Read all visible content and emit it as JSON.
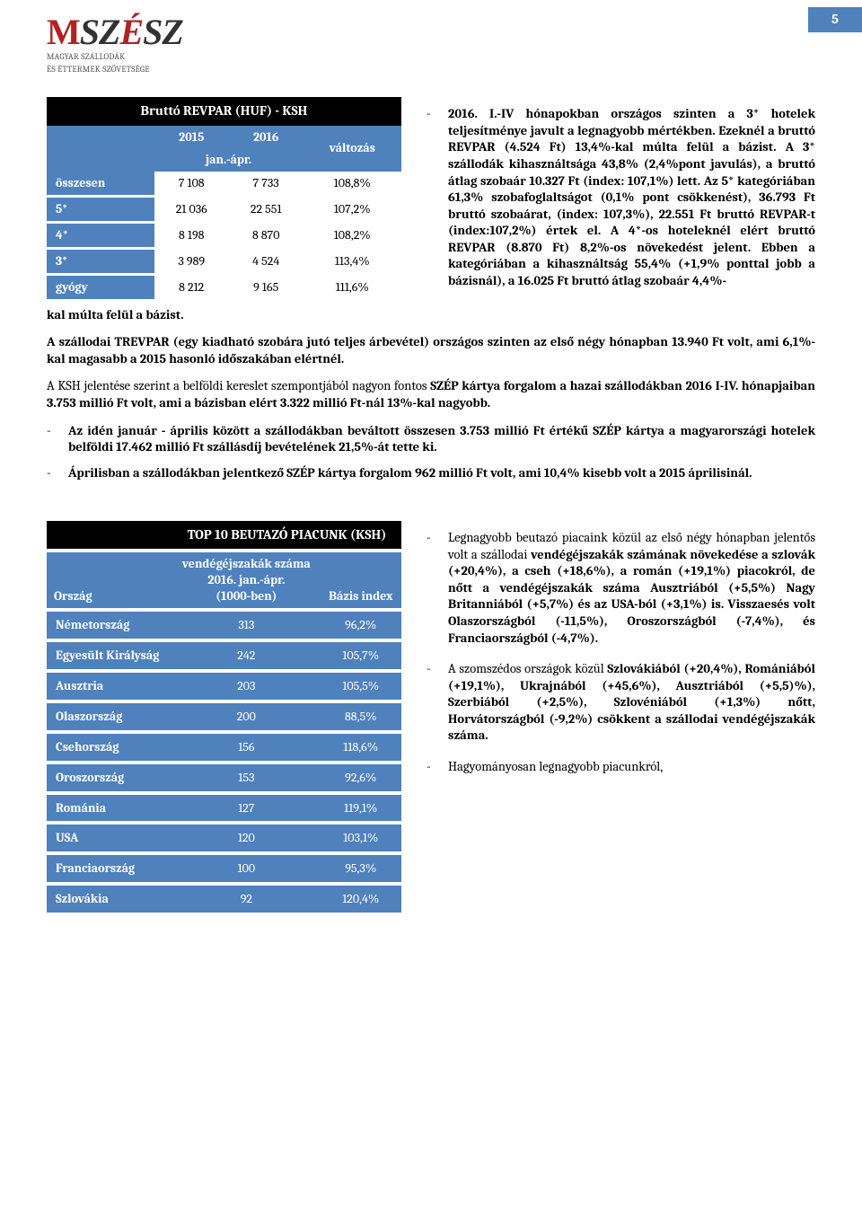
{
  "page_number": "5",
  "logo": {
    "m": "M",
    "rest": "SZÉSZ",
    "sub1": "MAGYAR SZÁLLODÁK",
    "sub2": "ÉS ÉTTERMEK SZÖVETSÉGE"
  },
  "revpar_table": {
    "title": "Bruttó REVPAR (HUF) - KSH",
    "col_2015": "2015",
    "col_2016": "2016",
    "col_period": "jan.-ápr.",
    "col_change": "változás",
    "rows": [
      {
        "label": "összesen",
        "v2015": "7 108",
        "v2016": "7 733",
        "chg": "108,8%"
      },
      {
        "label": "5*",
        "v2015": "21 036",
        "v2016": "22 551",
        "chg": "107,2%"
      },
      {
        "label": "4*",
        "v2015": "8 198",
        "v2016": "8 870",
        "chg": "108,2%"
      },
      {
        "label": "3*",
        "v2015": "3 989",
        "v2016": "4 524",
        "chg": "113,4%"
      },
      {
        "label": "gyógy",
        "v2015": "8 212",
        "v2016": "9 165",
        "chg": "111,6%"
      }
    ],
    "caption": "kal múlta felül a bázist."
  },
  "right_text": "2016. I.-IV hónapokban országos szinten a 3* hotelek teljesítménye javult a legnagyobb mértékben. Ezeknél a bruttó REVPAR (4.524 Ft) 13,4%-kal múlta felül a bázist. A 3* szállodák kihasználtsága 43,8% (2,4%pont javulás), a bruttó átlag szobaár 10.327 Ft (index: 107,1%) lett. Az 5* kategóriában 61,3% szobafoglaltságot (0,1% pont csökkenést), 36.793 Ft bruttó szobaárat, (index: 107,3%), 22.551 Ft bruttó REVPAR-t (index:107,2%) értek el. A 4*-os hoteleknél elért bruttó REVPAR (8.870 Ft) 8,2%-os növekedést jelent. Ebben a kategóriában a kihasználtság 55,4% (+1,9% ponttal jobb a bázisnál), a 16.025 Ft bruttó átlag szobaár 4,4%-",
  "mid_para_1_a": "A szállodai TREVPAR (egy kiadható szobára jutó teljes árbevétel) országos szinten az első négy hónapban 13.940 Ft volt, ami 6,1%-kal magasabb a 2015 hasonló időszakában elértnél.",
  "mid_para_2_a": "A KSH jelentése szerint a belföldi kereslet szempontjából nagyon fontos ",
  "mid_para_2_b": "SZÉP kártya forgalom a hazai szállodákban 2016 I-IV. hónapjaiban 3.753 millió Ft volt, ami a bázisban elért 3.322 millió Ft-nál 13%-kal nagyobb.",
  "bullet_1": "Az idén január - április között a szállodákban beváltott összesen 3.753 millió Ft értékű SZÉP kártya a magyarországi hotelek belföldi 17.462 millió Ft szállásdíj bevételének 21,5%-át tette ki.",
  "bullet_2": "Áprilisban a szállodákban jelentkező SZÉP kártya forgalom 962 millió Ft volt, ami 10,4% kisebb volt a 2015 áprilisinál.",
  "top10_table": {
    "title": "TOP 10 BEUTAZÓ PIACUNK (KSH)",
    "col_country": "Ország",
    "col_nights_l1": "vendégéjszakák száma",
    "col_nights_l2": "2016. jan.-ápr.",
    "col_nights_l3": "(1000-ben)",
    "col_index": "Bázis index",
    "rows": [
      {
        "c": "Németország",
        "n": "313",
        "i": "96,2%"
      },
      {
        "c": "Egyesült Királyság",
        "n": "242",
        "i": "105,7%"
      },
      {
        "c": "Ausztria",
        "n": "203",
        "i": "105,5%"
      },
      {
        "c": "Olaszország",
        "n": "200",
        "i": "88,5%"
      },
      {
        "c": "Csehország",
        "n": "156",
        "i": "118,6%"
      },
      {
        "c": "Oroszország",
        "n": "153",
        "i": "92,6%"
      },
      {
        "c": "Románia",
        "n": "127",
        "i": "119,1%"
      },
      {
        "c": "USA",
        "n": "120",
        "i": "103,1%"
      },
      {
        "c": "Franciaország",
        "n": "100",
        "i": "95,3%"
      },
      {
        "c": "Szlovákia",
        "n": "92",
        "i": "120,4%"
      }
    ]
  },
  "right_bullets": {
    "b1_a": "Legnagyobb beutazó piacaink közül az első négy hónapban jelentős volt a szállodai ",
    "b1_b": "vendégéjszakák számának növekedése a szlovák (+20,4%), a cseh (+18,6%), a román (+19,1%) piacokról, de nőtt a vendégéjszakák száma Ausztriából (+5,5%) Nagy Britanniából (+5,7%) és az USA-ból (+3,1%) is. Visszaesés volt Olaszországból (-11,5%), Oroszországból (-7,4%), és Franciaországból (-4,7%).",
    "b2_a": "A szomszédos országok közül ",
    "b2_b": "Szlovákiából (+20,4%), Romániából (+19,1%), Ukrajnából (+45,6%), Ausztriából (+5,5)%), Szerbiából (+2,5%), Szlovéniából (+1,3%) nőtt, Horvátországból (-9,2%) csökkent a szállodai vendégéjszakák száma.",
    "b3": "Hagyományosan legnagyobb piacunkról,"
  }
}
